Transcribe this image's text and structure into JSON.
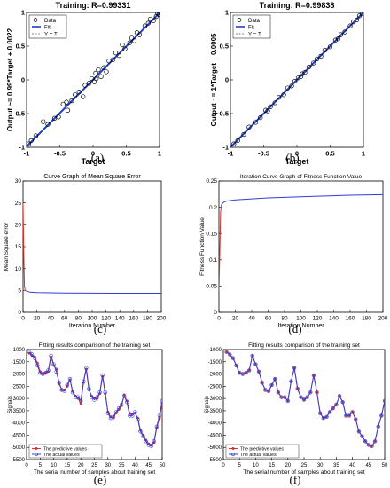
{
  "figure": {
    "captions": [
      "(a)",
      "(b)",
      "(c)",
      "(d)",
      "(e)",
      "(f)"
    ]
  },
  "chart_data": [
    {
      "id": "a",
      "type": "scatter",
      "title": "Training: R=0.99331",
      "xlabel": "Target",
      "ylabel": "Output ~= 0.99*Target + 0.0022",
      "xlim": [
        -1,
        1
      ],
      "ylim": [
        -1,
        1
      ],
      "xticks": [
        "-1",
        "-0.5",
        "0",
        "0.5",
        "1"
      ],
      "yticks": [
        "-1",
        "-0.5",
        "0",
        "0.5",
        "1"
      ],
      "legend": {
        "position": "top-left",
        "entries": [
          "Data",
          "Fit",
          "Y = T"
        ]
      },
      "fit": {
        "slope": 0.99,
        "intercept": 0.0022
      },
      "colors": {
        "data": "#000000",
        "fit": "#1f3fbf",
        "identity": "#888888"
      },
      "points": [
        [
          -0.97,
          -0.95
        ],
        [
          -0.93,
          -0.9
        ],
        [
          -0.86,
          -0.83
        ],
        [
          -0.75,
          -0.62
        ],
        [
          -0.68,
          -0.66
        ],
        [
          -0.58,
          -0.57
        ],
        [
          -0.52,
          -0.55
        ],
        [
          -0.45,
          -0.36
        ],
        [
          -0.4,
          -0.33
        ],
        [
          -0.38,
          -0.45
        ],
        [
          -0.32,
          -0.31
        ],
        [
          -0.27,
          -0.22
        ],
        [
          -0.21,
          -0.18
        ],
        [
          -0.15,
          -0.25
        ],
        [
          -0.12,
          -0.08
        ],
        [
          -0.06,
          -0.05
        ],
        [
          -0.02,
          0.02
        ],
        [
          0.02,
          -0.03
        ],
        [
          0.04,
          0.1
        ],
        [
          0.05,
          0.02
        ],
        [
          0.08,
          0.15
        ],
        [
          0.12,
          0.05
        ],
        [
          0.16,
          0.18
        ],
        [
          0.2,
          0.12
        ],
        [
          0.24,
          0.28
        ],
        [
          0.3,
          0.3
        ],
        [
          0.34,
          0.4
        ],
        [
          0.39,
          0.36
        ],
        [
          0.44,
          0.52
        ],
        [
          0.48,
          0.46
        ],
        [
          0.55,
          0.55
        ],
        [
          0.58,
          0.62
        ],
        [
          0.62,
          0.58
        ],
        [
          0.66,
          0.7
        ],
        [
          0.7,
          0.67
        ],
        [
          0.78,
          0.8
        ],
        [
          0.83,
          0.84
        ],
        [
          0.86,
          0.9
        ],
        [
          0.91,
          0.88
        ],
        [
          0.95,
          0.94
        ],
        [
          0.97,
          0.99
        ],
        [
          0.99,
          0.97
        ]
      ]
    },
    {
      "id": "b",
      "type": "scatter",
      "title": "Training: R=0.99838",
      "xlabel": "Target",
      "ylabel": "Output ~= 1*Target + 0.0005",
      "xlim": [
        -1,
        1
      ],
      "ylim": [
        -1,
        1
      ],
      "xticks": [
        "-1",
        "-0.5",
        "0",
        "0.5",
        "1"
      ],
      "yticks": [
        "-1",
        "-0.5",
        "0",
        "0.5",
        "1"
      ],
      "legend": {
        "position": "top-left",
        "entries": [
          "Data",
          "Fit",
          "Y = T"
        ]
      },
      "fit": {
        "slope": 1.0,
        "intercept": 0.0005
      },
      "colors": {
        "data": "#000000",
        "fit": "#1f3fbf",
        "identity": "#888888"
      },
      "points": [
        [
          -0.95,
          -0.95
        ],
        [
          -0.89,
          -0.9
        ],
        [
          -0.8,
          -0.81
        ],
        [
          -0.72,
          -0.7
        ],
        [
          -0.62,
          -0.63
        ],
        [
          -0.55,
          -0.56
        ],
        [
          -0.47,
          -0.45
        ],
        [
          -0.44,
          -0.46
        ],
        [
          -0.4,
          -0.4
        ],
        [
          -0.33,
          -0.34
        ],
        [
          -0.27,
          -0.26
        ],
        [
          -0.2,
          -0.22
        ],
        [
          -0.14,
          -0.12
        ],
        [
          -0.08,
          -0.09
        ],
        [
          -0.03,
          -0.02
        ],
        [
          0.02,
          0.03
        ],
        [
          0.06,
          0.05
        ],
        [
          0.08,
          0.09
        ],
        [
          0.12,
          0.11
        ],
        [
          0.18,
          0.19
        ],
        [
          0.25,
          0.25
        ],
        [
          0.3,
          0.31
        ],
        [
          0.36,
          0.35
        ],
        [
          0.42,
          0.44
        ],
        [
          0.5,
          0.49
        ],
        [
          0.58,
          0.59
        ],
        [
          0.62,
          0.61
        ],
        [
          0.66,
          0.67
        ],
        [
          0.72,
          0.71
        ],
        [
          0.8,
          0.8
        ],
        [
          0.85,
          0.86
        ],
        [
          0.9,
          0.89
        ],
        [
          0.94,
          0.95
        ],
        [
          0.98,
          0.98
        ]
      ]
    },
    {
      "id": "c",
      "type": "line",
      "title": "Curve Graph of Mean Square Error",
      "xlabel": "Iteration Number",
      "ylabel": "Mean Square error",
      "xlim": [
        0,
        200
      ],
      "ylim": [
        0,
        30
      ],
      "xticks": [
        "0",
        "20",
        "40",
        "60",
        "80",
        "100",
        "120",
        "140",
        "160",
        "180",
        "200"
      ],
      "yticks": [
        "0",
        "5",
        "10",
        "15",
        "20",
        "25",
        "30"
      ],
      "series": [
        {
          "color": "#e0302a",
          "x": [
            0,
            1,
            2,
            3,
            4
          ],
          "y": [
            25,
            14,
            6,
            5,
            4.9
          ]
        },
        {
          "color": "#2f3fd6",
          "x": [
            4,
            10,
            20,
            40,
            60,
            100,
            140,
            200
          ],
          "y": [
            4.9,
            4.6,
            4.5,
            4.45,
            4.4,
            4.38,
            4.36,
            4.35
          ]
        }
      ]
    },
    {
      "id": "d",
      "type": "line",
      "title": "Iteration Curve Graph of Fitness Function Value",
      "xlabel": "Iteration Number",
      "ylabel": "Fitness Function Value",
      "xlim": [
        0,
        200
      ],
      "ylim": [
        0,
        0.25
      ],
      "xticks": [
        "0",
        "20",
        "40",
        "60",
        "80",
        "100",
        "120",
        "140",
        "160",
        "180",
        "200"
      ],
      "yticks": [
        "0",
        "0.05",
        "0.1",
        "0.15",
        "0.2",
        "0.25"
      ],
      "series": [
        {
          "color": "#e0302a",
          "x": [
            0,
            1,
            2,
            3
          ],
          "y": [
            0.04,
            0.11,
            0.19,
            0.205
          ]
        },
        {
          "color": "#2f3fd6",
          "x": [
            3,
            6,
            10,
            20,
            40,
            60,
            80,
            100,
            120,
            140,
            160,
            200
          ],
          "y": [
            0.205,
            0.21,
            0.212,
            0.214,
            0.216,
            0.218,
            0.219,
            0.22,
            0.221,
            0.222,
            0.223,
            0.224
          ]
        }
      ]
    },
    {
      "id": "e",
      "type": "line",
      "title": "Fitting results comparison of the training set",
      "xlabel": "The serial number of samples about training set",
      "ylabel": "Signals",
      "xlim": [
        0,
        50
      ],
      "ylim": [
        -5500,
        -1000
      ],
      "xticks": [
        "0",
        "5",
        "10",
        "15",
        "20",
        "25",
        "30",
        "35",
        "40",
        "45",
        "50"
      ],
      "yticks": [
        "-1000",
        "-1500",
        "-2000",
        "-2500",
        "-3000",
        "-3500",
        "-4000",
        "-4500",
        "-5000",
        "-5500"
      ],
      "legend": {
        "position": "bottom-left"
      },
      "series": [
        {
          "name": "The predictive values",
          "color": "#e0302a",
          "marker": "dot",
          "x": [
            1,
            2,
            3,
            4,
            5,
            6,
            7,
            8,
            9,
            10,
            11,
            12,
            13,
            14,
            15,
            16,
            17,
            18,
            19,
            20,
            21,
            22,
            23,
            24,
            25,
            26,
            27,
            28,
            29,
            30,
            31,
            32,
            33,
            34,
            35,
            36,
            37,
            38,
            39,
            40,
            41,
            42,
            43,
            44,
            45,
            46,
            47,
            48,
            49,
            50
          ],
          "y": [
            -1150,
            -1250,
            -1300,
            -1550,
            -1900,
            -2000,
            -1950,
            -1900,
            -1300,
            -1650,
            -1800,
            -2400,
            -2650,
            -2650,
            -2500,
            -2250,
            -2700,
            -2900,
            -3000,
            -3200,
            -2350,
            -1800,
            -2650,
            -2900,
            -3000,
            -3000,
            -2800,
            -2100,
            -2800,
            -3550,
            -3750,
            -3800,
            -3600,
            -3450,
            -3300,
            -2850,
            -3100,
            -3600,
            -3650,
            -3600,
            -3800,
            -4300,
            -4500,
            -4700,
            -4850,
            -4900,
            -4800,
            -4200,
            -3800,
            -3200
          ]
        },
        {
          "name": "The actual values",
          "color": "#2f3fd6",
          "marker": "circle",
          "x": [
            1,
            2,
            3,
            4,
            5,
            6,
            7,
            8,
            9,
            10,
            11,
            12,
            13,
            14,
            15,
            16,
            17,
            18,
            19,
            20,
            21,
            22,
            23,
            24,
            25,
            26,
            27,
            28,
            29,
            30,
            31,
            32,
            33,
            34,
            35,
            36,
            37,
            38,
            39,
            40,
            41,
            42,
            43,
            44,
            45,
            46,
            47,
            48,
            49,
            50
          ],
          "y": [
            -1100,
            -1200,
            -1350,
            -1650,
            -1950,
            -2000,
            -1950,
            -1850,
            -1250,
            -1600,
            -1900,
            -2350,
            -2650,
            -2700,
            -2450,
            -2200,
            -2750,
            -2950,
            -2950,
            -3100,
            -2300,
            -1750,
            -2600,
            -2950,
            -3050,
            -2950,
            -2750,
            -2050,
            -2750,
            -3600,
            -3800,
            -3750,
            -3550,
            -3400,
            -3250,
            -2900,
            -3150,
            -3700,
            -3700,
            -3550,
            -3850,
            -4350,
            -4550,
            -4750,
            -4900,
            -4950,
            -4750,
            -4150,
            -3700,
            -3100
          ]
        }
      ]
    },
    {
      "id": "f",
      "type": "line",
      "title": "Fitting results comparison of the training set",
      "xlabel": "The serial number of samples about training set",
      "ylabel": "Signals",
      "xlim": [
        0,
        50
      ],
      "ylim": [
        -5500,
        -1000
      ],
      "xticks": [
        "0",
        "5",
        "10",
        "15",
        "20",
        "25",
        "30",
        "35",
        "40",
        "45",
        "50"
      ],
      "yticks": [
        "-1000",
        "-1500",
        "-2000",
        "-2500",
        "-3000",
        "-3500",
        "-4000",
        "-4500",
        "-5000",
        "-5500"
      ],
      "legend": {
        "position": "bottom-left"
      },
      "series": [
        {
          "name": "The predictive values",
          "color": "#e0302a",
          "marker": "dot",
          "x": [
            1,
            2,
            3,
            4,
            5,
            6,
            7,
            8,
            9,
            10,
            11,
            12,
            13,
            14,
            15,
            16,
            17,
            18,
            19,
            20,
            21,
            22,
            23,
            24,
            25,
            26,
            27,
            28,
            29,
            30,
            31,
            32,
            33,
            34,
            35,
            36,
            37,
            38,
            39,
            40,
            41,
            42,
            43,
            44,
            45,
            46,
            47,
            48,
            49,
            50
          ],
          "y": [
            -1100,
            -1200,
            -1350,
            -1650,
            -1950,
            -2000,
            -1950,
            -1850,
            -1250,
            -1600,
            -1900,
            -2350,
            -2650,
            -2700,
            -2450,
            -2200,
            -2750,
            -2950,
            -2950,
            -3100,
            -2300,
            -1750,
            -2600,
            -2950,
            -3050,
            -2950,
            -2750,
            -2050,
            -2750,
            -3600,
            -3800,
            -3750,
            -3550,
            -3400,
            -3250,
            -2900,
            -3150,
            -3700,
            -3700,
            -3550,
            -3850,
            -4350,
            -4550,
            -4750,
            -4900,
            -4950,
            -4750,
            -4150,
            -3700,
            -3100
          ]
        },
        {
          "name": "The actual values",
          "color": "#2f3fd6",
          "marker": "circle",
          "x": [
            1,
            2,
            3,
            4,
            5,
            6,
            7,
            8,
            9,
            10,
            11,
            12,
            13,
            14,
            15,
            16,
            17,
            18,
            19,
            20,
            21,
            22,
            23,
            24,
            25,
            26,
            27,
            28,
            29,
            30,
            31,
            32,
            33,
            34,
            35,
            36,
            37,
            38,
            39,
            40,
            41,
            42,
            43,
            44,
            45,
            46,
            47,
            48,
            49,
            50
          ],
          "y": [
            -1100,
            -1200,
            -1350,
            -1650,
            -1950,
            -2000,
            -1950,
            -1850,
            -1250,
            -1600,
            -1900,
            -2350,
            -2650,
            -2700,
            -2450,
            -2200,
            -2750,
            -2950,
            -2950,
            -3100,
            -2300,
            -1750,
            -2600,
            -2950,
            -3050,
            -2950,
            -2750,
            -2050,
            -2750,
            -3600,
            -3800,
            -3750,
            -3550,
            -3400,
            -3250,
            -2900,
            -3150,
            -3700,
            -3700,
            -3550,
            -3850,
            -4350,
            -4550,
            -4750,
            -4900,
            -4950,
            -4750,
            -4150,
            -3700,
            -3100
          ]
        }
      ]
    }
  ]
}
